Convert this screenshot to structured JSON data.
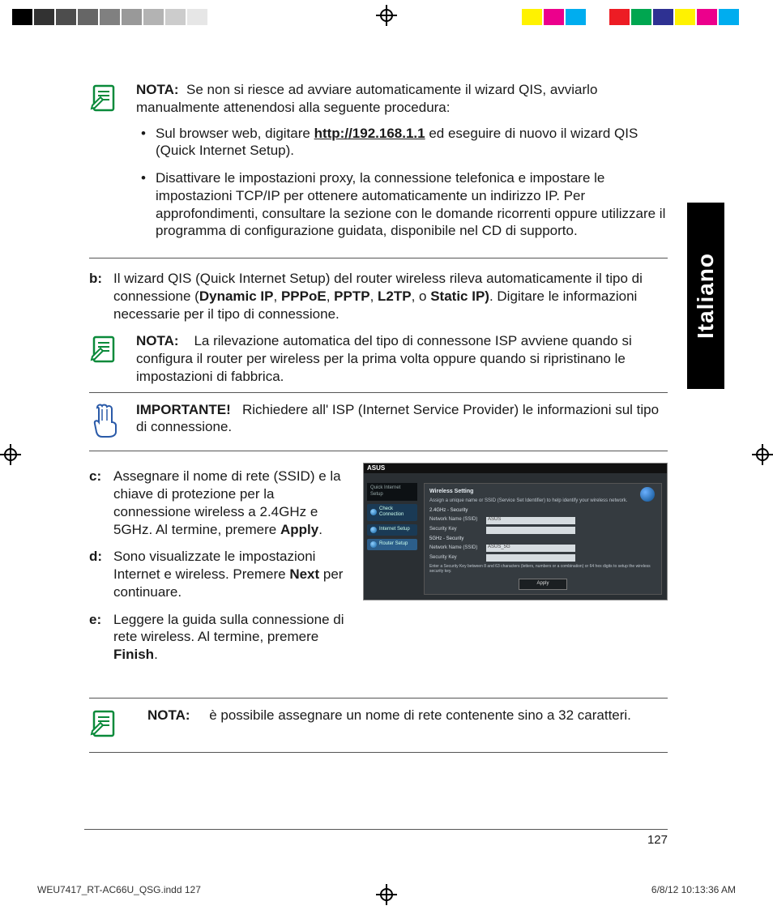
{
  "colorbar": {
    "left": [
      "#000000",
      "#323232",
      "#4d4d4d",
      "#666666",
      "#808080",
      "#999999",
      "#b3b3b3",
      "#cccccc",
      "#e6e6e6",
      "#ffffff"
    ],
    "right": [
      "#ffffff",
      "#fff200",
      "#ec008c",
      "#00adef",
      "#ffffff",
      "#ed1c24",
      "#00a650",
      "#2e3192",
      "#fff200",
      "#ec008c",
      "#00adef",
      "#ffffff"
    ]
  },
  "lang_tab": "Italiano",
  "note1": {
    "label": "NOTA:",
    "intro": "Se non si riesce ad avviare automaticamente il wizard QIS, avviarlo manualmente attenendosi alla seguente procedura:",
    "bullet1_a": "Sul browser web, digitare ",
    "bullet1_url": "http://192.168.1.1",
    "bullet1_b": " ed eseguire di nuovo il wizard QIS (Quick Internet Setup).",
    "bullet2": "Disattivare le impostazioni proxy, la connessione telefonica e impostare le impostazioni TCP/IP per ottenere automaticamente un indirizzo IP. Per approfondimenti, consultare la sezione con le domande ricorrenti oppure utilizzare il programma di configurazione guidata, disponibile nel CD di supporto."
  },
  "step_b": {
    "label": "b:",
    "t1": "Il wizard QIS (Quick Internet Setup) del router wireless rileva automaticamente il tipo di connessione (",
    "c1": "Dynamic IP",
    "s1": ", ",
    "c2": "PPPoE",
    "s2": ", ",
    "c3": "PPTP",
    "s3": ", ",
    "c4": "L2TP",
    "s4": ", o ",
    "c5": "Static IP)",
    "t2": ". Digitare le informazioni necessarie per il tipo di connessione."
  },
  "note2": {
    "label": "NOTA:",
    "text": "La rilevazione automatica del tipo di connessone ISP avviene quando si configura il router per wireless per la prima volta oppure quando si ripristinano le impostazioni di fabbrica."
  },
  "important": {
    "label": "IMPORTANTE!",
    "text": "Richiedere all' ISP (Internet Service Provider) le informazioni sul tipo di connessione."
  },
  "step_c": {
    "label": "c:",
    "t1": "Assegnare il nome di rete (SSID) e la chiave di protezione per la connessione wireless a 2.4GHz e 5GHz. Al termine, premere ",
    "b1": "Apply",
    "t2": "."
  },
  "step_d": {
    "label": "d:",
    "t1": "Sono visualizzate le impostazioni Internet e wireless. Premere ",
    "b1": "Next",
    "t2": " per continuare."
  },
  "step_e": {
    "label": "e:",
    "t1": "Leggere la guida sulla connessione di rete wireless. Al termine, premere ",
    "b1": "Finish",
    "t2": "."
  },
  "note3": {
    "label": "NOTA:",
    "text": "è possibile assegnare un nome di rete contenente sino a 32 caratteri."
  },
  "router_ui": {
    "brand": "ASUS",
    "side_header": "Quick Internet Setup",
    "side_items": [
      "Check Connection",
      "Internet Setup",
      "Router Setup"
    ],
    "panel_title": "Wireless Setting",
    "desc": "Assign a unique name or SSID (Service Set Identifier) to help identify your wireless network.",
    "section_a": "2.4GHz - Security",
    "rows_a": [
      {
        "k": "Network Name (SSID)",
        "v": "ASUS"
      },
      {
        "k": "Security Key",
        "v": ""
      }
    ],
    "section_b": "5GHz - Security",
    "rows_b": [
      {
        "k": "Network Name (SSID)",
        "v": "ASUS_5G"
      },
      {
        "k": "Security Key",
        "v": ""
      }
    ],
    "foot": "Enter a Security Key between 8 and 63 characters (letters, numbers or a combination) or 64 hex digits to setup the wireless security key.",
    "button": "Apply"
  },
  "page_number": "127",
  "slug": {
    "file": "WEU7417_RT-AC66U_QSG.indd   127",
    "stamp": "6/8/12   10:13:36 AM"
  },
  "icons": {
    "note_color": "#0a8a3a",
    "important_color": "#2a5aa8"
  }
}
